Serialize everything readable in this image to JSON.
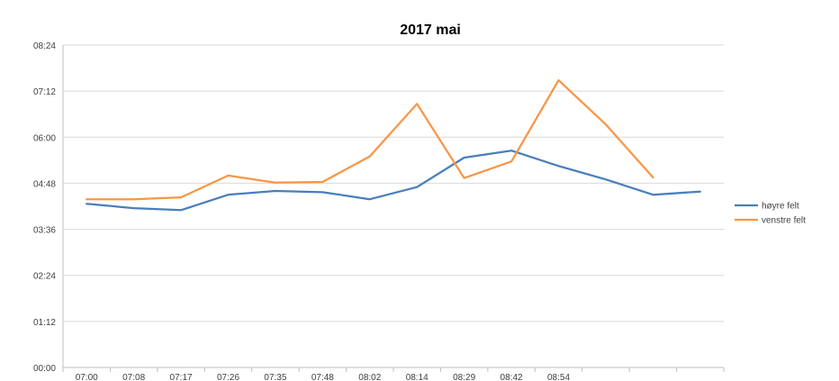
{
  "chart_data": {
    "type": "line",
    "title": "2017 mai",
    "xlabel": "",
    "ylabel": "",
    "ylim": [
      "00:00",
      "08:24"
    ],
    "y_ticks": [
      "00:00",
      "01:12",
      "02:24",
      "03:36",
      "04:48",
      "06:00",
      "07:12",
      "08:24"
    ],
    "categories": [
      "07:00",
      "07:08",
      "07:17",
      "07:26",
      "07:35",
      "07:48",
      "08:02",
      "08:14",
      "08:29",
      "08:42",
      "08:54",
      "",
      "",
      ""
    ],
    "series": [
      {
        "name": "høyre felt",
        "color": "#4a7ebb",
        "values": [
          "04:16",
          "04:09",
          "04:06",
          "04:30",
          "04:36",
          "04:34",
          "04:23",
          "04:42",
          "05:28",
          "05:39",
          "05:15",
          "04:54",
          "04:30",
          "04:35"
        ]
      },
      {
        "name": "venstre felt",
        "color": "#f79646",
        "values": [
          "04:23",
          "04:23",
          "04:26",
          "05:00",
          "04:49",
          "04:50",
          "05:30",
          "06:52",
          "04:56",
          "05:22",
          "07:29",
          "06:20",
          "04:57",
          null
        ]
      }
    ],
    "grid": true,
    "legend_position": "right"
  }
}
